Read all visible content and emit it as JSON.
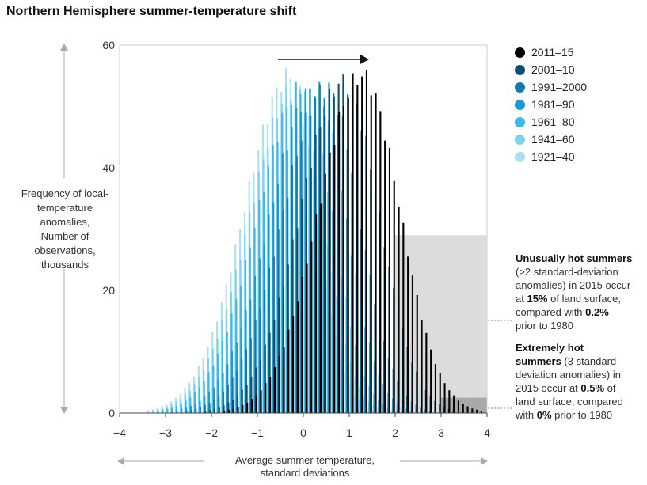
{
  "chart_data": {
    "type": "bar",
    "title": "Northern Hemisphere summer-temperature shift",
    "ylabel": {
      "main": "Frequency of local-temperature anomalies,",
      "sub": "Number of observations, thousands"
    },
    "xlabel": {
      "main": "Average summer temperature,",
      "sub": "standard deviations"
    },
    "xlim": [
      -4,
      4
    ],
    "ylim": [
      0,
      60
    ],
    "xticks": [
      "−4",
      "−3",
      "−2",
      "−1",
      "0",
      "1",
      "2",
      "3",
      "4"
    ],
    "yticks": [
      "0",
      "20",
      "40",
      "60"
    ],
    "bin_width": 0.1,
    "legend_position": "top-right",
    "series": [
      {
        "name": "1921–40",
        "color": "#a8e2f2",
        "peak_x": -0.25,
        "peak": 55,
        "sigma_left": 1.0,
        "sigma_right": 0.58
      },
      {
        "name": "1941–60",
        "color": "#7dd2ec",
        "peak_x": -0.15,
        "peak": 53,
        "sigma_left": 1.0,
        "sigma_right": 0.62
      },
      {
        "name": "1961–80",
        "color": "#3cb8e3",
        "peak_x": 0.0,
        "peak": 53,
        "sigma_left": 1.0,
        "sigma_right": 0.65
      },
      {
        "name": "1981–90",
        "color": "#1a9bd4",
        "peak_x": 0.25,
        "peak": 53,
        "sigma_left": 0.98,
        "sigma_right": 0.68
      },
      {
        "name": "1991–2000",
        "color": "#137bad",
        "peak_x": 0.5,
        "peak": 53,
        "sigma_left": 0.97,
        "sigma_right": 0.72
      },
      {
        "name": "2001–10",
        "color": "#0b4e72",
        "peak_x": 0.85,
        "peak": 54,
        "sigma_left": 0.95,
        "sigma_right": 0.78
      },
      {
        "name": "2011–15",
        "color": "#000000",
        "peak_x": 1.25,
        "peak": 55,
        "sigma_left": 0.95,
        "sigma_right": 0.82
      }
    ],
    "highlights": [
      {
        "x_from": 2,
        "x_to": 4,
        "y_top": 29,
        "color": "#dcdcdc"
      },
      {
        "x_from": 3,
        "x_to": 4,
        "y_top": 2.5,
        "color": "#a9a9a9"
      }
    ],
    "annotations": [
      {
        "lines": [
          [
            {
              "t": "Unusually hot summers",
              "b": true
            }
          ],
          [
            {
              "t": "(>2 standard-deviation",
              "b": false
            }
          ],
          [
            {
              "t": "anomalies) in 2015 occur",
              "b": false
            }
          ],
          [
            {
              "t": "at ",
              "b": false
            },
            {
              "t": "15%",
              "b": true
            },
            {
              "t": " of land surface,",
              "b": false
            }
          ],
          [
            {
              "t": "compared with ",
              "b": false
            },
            {
              "t": "0.2%",
              "b": true
            }
          ],
          [
            {
              "t": "prior to 1980",
              "b": false
            }
          ]
        ]
      },
      {
        "lines": [
          [
            {
              "t": "Extremely hot",
              "b": true
            }
          ],
          [
            {
              "t": "summers",
              "b": true
            },
            {
              "t": " (3 standard-",
              "b": false
            }
          ],
          [
            {
              "t": "deviation anomalies) in",
              "b": false
            }
          ],
          [
            {
              "t": "2015 occur at ",
              "b": false
            },
            {
              "t": "0.5%",
              "b": true
            },
            {
              "t": " of",
              "b": false
            }
          ],
          [
            {
              "t": "land surface, compared",
              "b": false
            }
          ],
          [
            {
              "t": "with ",
              "b": false
            },
            {
              "t": "0%",
              "b": true
            },
            {
              "t": " prior to 1980",
              "b": false
            }
          ]
        ]
      }
    ]
  }
}
